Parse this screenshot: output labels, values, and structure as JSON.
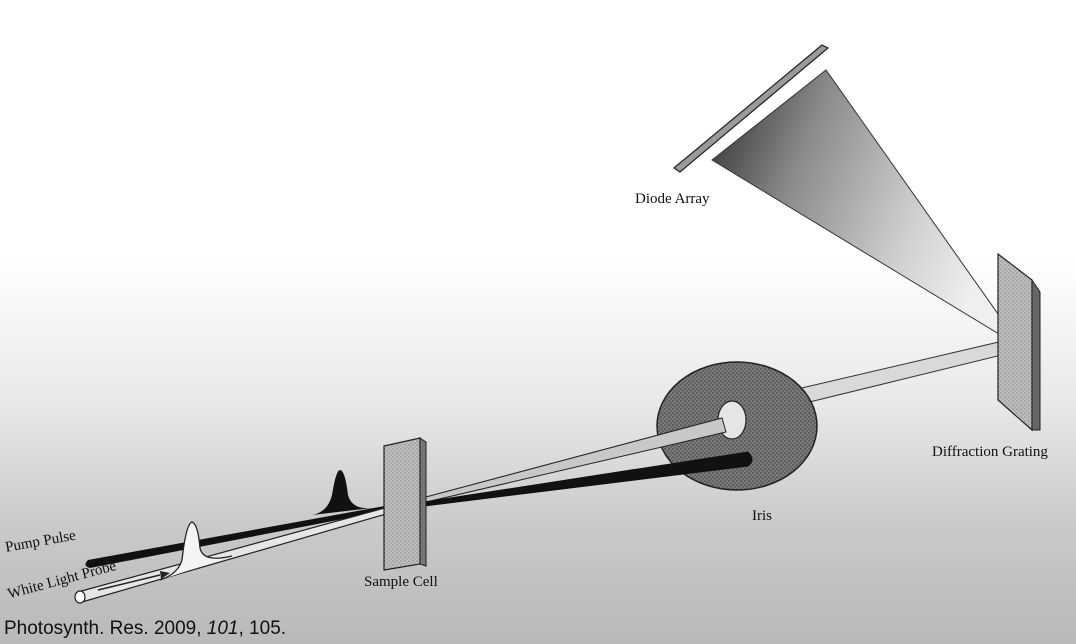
{
  "labels": {
    "diode_array": "Diode Array",
    "diffraction_grating": "Diffraction Grating",
    "iris": "Iris",
    "sample_cell": "Sample Cell",
    "pump_pulse": "Pump Pulse",
    "white_light_probe": "White Light Probe"
  },
  "citation": {
    "journal": "Photosynth. Res. 2009,",
    "volume": "101",
    "page": ", 105."
  }
}
